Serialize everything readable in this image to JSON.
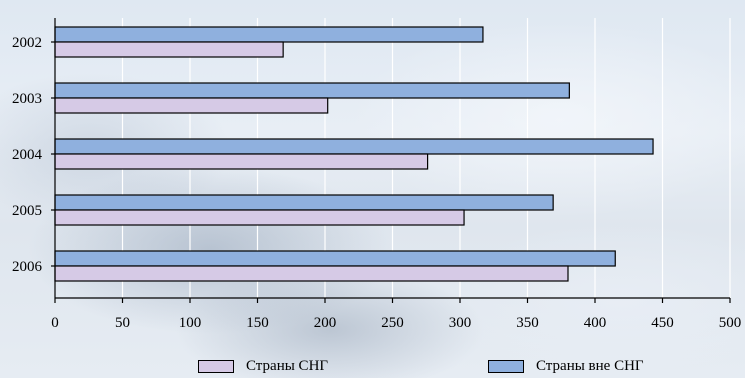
{
  "chart_data": {
    "type": "bar",
    "orientation": "horizontal",
    "categories": [
      "2002",
      "2003",
      "2004",
      "2005",
      "2006"
    ],
    "series": [
      {
        "name": "Страны вне СНГ",
        "color": "#8fb0de",
        "values": [
          317,
          381,
          443,
          369,
          415
        ]
      },
      {
        "name": "Страны СНГ",
        "color": "#d6cae6",
        "values": [
          169,
          202,
          276,
          303,
          380
        ]
      }
    ],
    "x_ticks": [
      "0",
      "50",
      "100",
      "150",
      "200",
      "250",
      "300",
      "350",
      "400",
      "450",
      "500"
    ],
    "xlim": [
      0,
      500
    ],
    "grid": true,
    "legend_position": "bottom"
  }
}
